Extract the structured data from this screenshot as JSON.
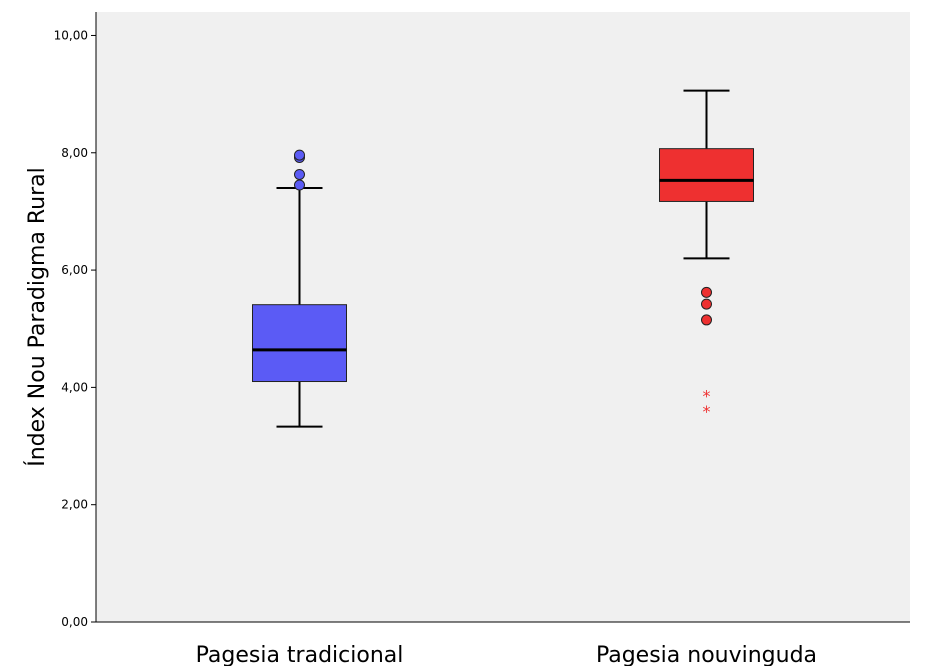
{
  "chart_data": {
    "type": "boxplot",
    "ylabel": "Índex Nou Paradigma Rural",
    "ylim": [
      0,
      10.4
    ],
    "yticks": [
      0,
      2,
      4,
      6,
      8,
      10
    ],
    "ytick_labels": [
      "0,00",
      "2,00",
      "4,00",
      "6,00",
      "8,00",
      "10,00"
    ],
    "grid": false,
    "categories": [
      "Pagesia tradicional",
      "Pagesia nouvinguda"
    ],
    "boxes": [
      {
        "category": "Pagesia tradicional",
        "color": "#5b5bf5",
        "whisker_low": 3.33,
        "q1": 4.1,
        "median": 4.64,
        "q3": 5.41,
        "whisker_high": 7.4,
        "outliers": [
          7.45,
          7.63,
          7.92,
          7.96
        ],
        "extremes": []
      },
      {
        "category": "Pagesia nouvinguda",
        "color": "#ee3030",
        "whisker_low": 6.2,
        "q1": 7.17,
        "median": 7.53,
        "q3": 8.07,
        "whisker_high": 9.06,
        "outliers": [
          5.15,
          5.42,
          5.62
        ],
        "extremes": [
          3.6,
          3.86
        ]
      }
    ]
  }
}
